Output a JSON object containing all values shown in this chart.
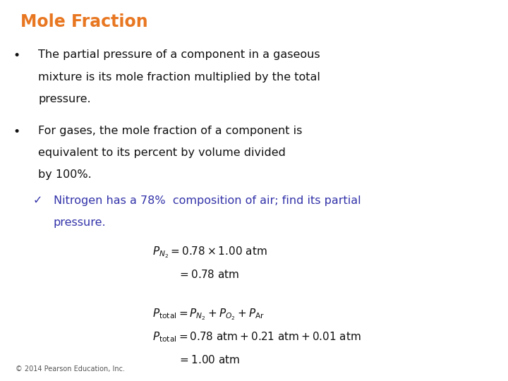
{
  "title": "Mole Fraction",
  "title_color": "#E87722",
  "background_color": "#FFFFFF",
  "bullet1_line1": "The partial pressure of a component in a gaseous",
  "bullet1_line2": "mixture is its mole fraction multiplied by the total",
  "bullet1_line3": "pressure.",
  "bullet2_line1": "For gases, the mole fraction of a component is",
  "bullet2_line2": "equivalent to its percent by volume divided",
  "bullet2_line3": "by 100%.",
  "checkmark_text_line1": "Nitrogen has a 78%  composition of air; find its partial",
  "checkmark_text_line2": "pressure.",
  "checkmark_color": "#3333AA",
  "eq1": "$P_{N_2} = 0.78 \\times 1.00 \\text{ atm}$",
  "eq2": "$= 0.78 \\text{ atm}$",
  "eq3": "$P_{\\mathrm{total}} = P_{N_2} + P_{O_2} + P_{\\mathrm{Ar}}$",
  "eq4": "$P_{\\mathrm{total}} = 0.78 \\text{ atm} + 0.21 \\text{ atm} + 0.01 \\text{ atm}$",
  "eq5": "$= 1.00 \\text{ atm}$",
  "footer": "© 2014 Pearson Education, Inc.",
  "footer_color": "#555555"
}
